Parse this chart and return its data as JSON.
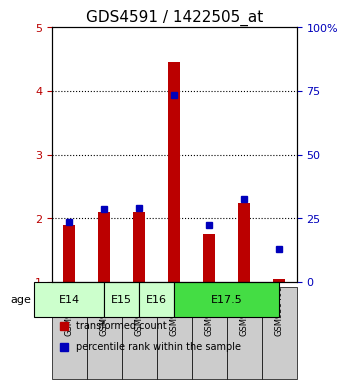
{
  "title": "GDS4591 / 1422505_at",
  "samples": [
    "GSM936403",
    "GSM936404",
    "GSM936405",
    "GSM936402",
    "GSM936400",
    "GSM936401",
    "GSM936406"
  ],
  "red_values": [
    1.9,
    2.1,
    2.1,
    4.45,
    1.75,
    2.25,
    1.05
  ],
  "blue_values": [
    1.95,
    2.15,
    2.17,
    3.93,
    1.9,
    2.3,
    1.52
  ],
  "ymin": 1,
  "ymax": 5,
  "bar_width": 0.35,
  "red_color": "#bb0000",
  "blue_color": "#0000bb",
  "age_groups": [
    {
      "label": "E14",
      "samples": [
        "GSM936403",
        "GSM936404"
      ],
      "color": "#ccffcc"
    },
    {
      "label": "E15",
      "samples": [
        "GSM936405"
      ],
      "color": "#ccffcc"
    },
    {
      "label": "E16",
      "samples": [
        "GSM936402"
      ],
      "color": "#ccffcc"
    },
    {
      "label": "E17.5",
      "samples": [
        "GSM936400",
        "GSM936401",
        "GSM936406"
      ],
      "color": "#44dd44"
    }
  ],
  "legend_red": "transformed count",
  "legend_blue": "percentile rank within the sample",
  "title_fontsize": 11,
  "tick_fontsize": 8,
  "label_fontsize": 8,
  "age_label": "age",
  "background_color": "#ffffff",
  "sample_box_color": "#cccccc"
}
